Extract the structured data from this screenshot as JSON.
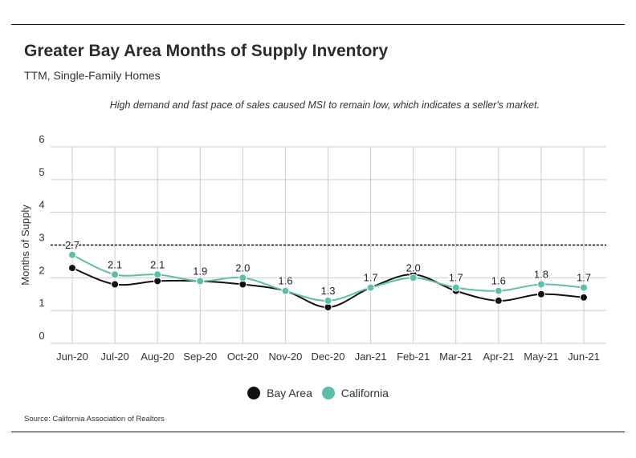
{
  "title": "Greater Bay Area Months of Supply Inventory",
  "subtitle": "TTM, Single-Family Homes",
  "annotation": "High demand and fast pace of sales caused MSI to remain low, which indicates a seller's market.",
  "source": "Source:  California Association of Realtors",
  "colors": {
    "bay_area": "#111111",
    "california": "#5bbfaa",
    "grid": "#cccccc",
    "reference": "#111111"
  },
  "chart_data": {
    "type": "line",
    "title": "Greater Bay Area Months of Supply Inventory",
    "subtitle": "TTM, Single-Family Homes",
    "ylabel": "Months of Supply",
    "xlabel": "",
    "ylim": [
      0,
      6
    ],
    "yticks": [
      0,
      1,
      2,
      3,
      4,
      5,
      6
    ],
    "grid": true,
    "legend_position": "bottom-center",
    "reference_line": {
      "value": 3,
      "style": "dashed"
    },
    "categories": [
      "Jun-20",
      "Jul-20",
      "Aug-20",
      "Sep-20",
      "Oct-20",
      "Nov-20",
      "Dec-20",
      "Jan-21",
      "Feb-21",
      "Mar-21",
      "Apr-21",
      "May-21",
      "Jun-21"
    ],
    "series": [
      {
        "name": "Bay Area",
        "values": [
          2.3,
          1.8,
          1.9,
          1.9,
          1.8,
          1.6,
          1.1,
          1.7,
          2.1,
          1.6,
          1.3,
          1.5,
          1.4
        ],
        "labels": false
      },
      {
        "name": "California",
        "values": [
          2.7,
          2.1,
          2.1,
          1.9,
          2.0,
          1.6,
          1.3,
          1.7,
          2.0,
          1.7,
          1.6,
          1.8,
          1.7
        ],
        "labels": true
      }
    ]
  }
}
